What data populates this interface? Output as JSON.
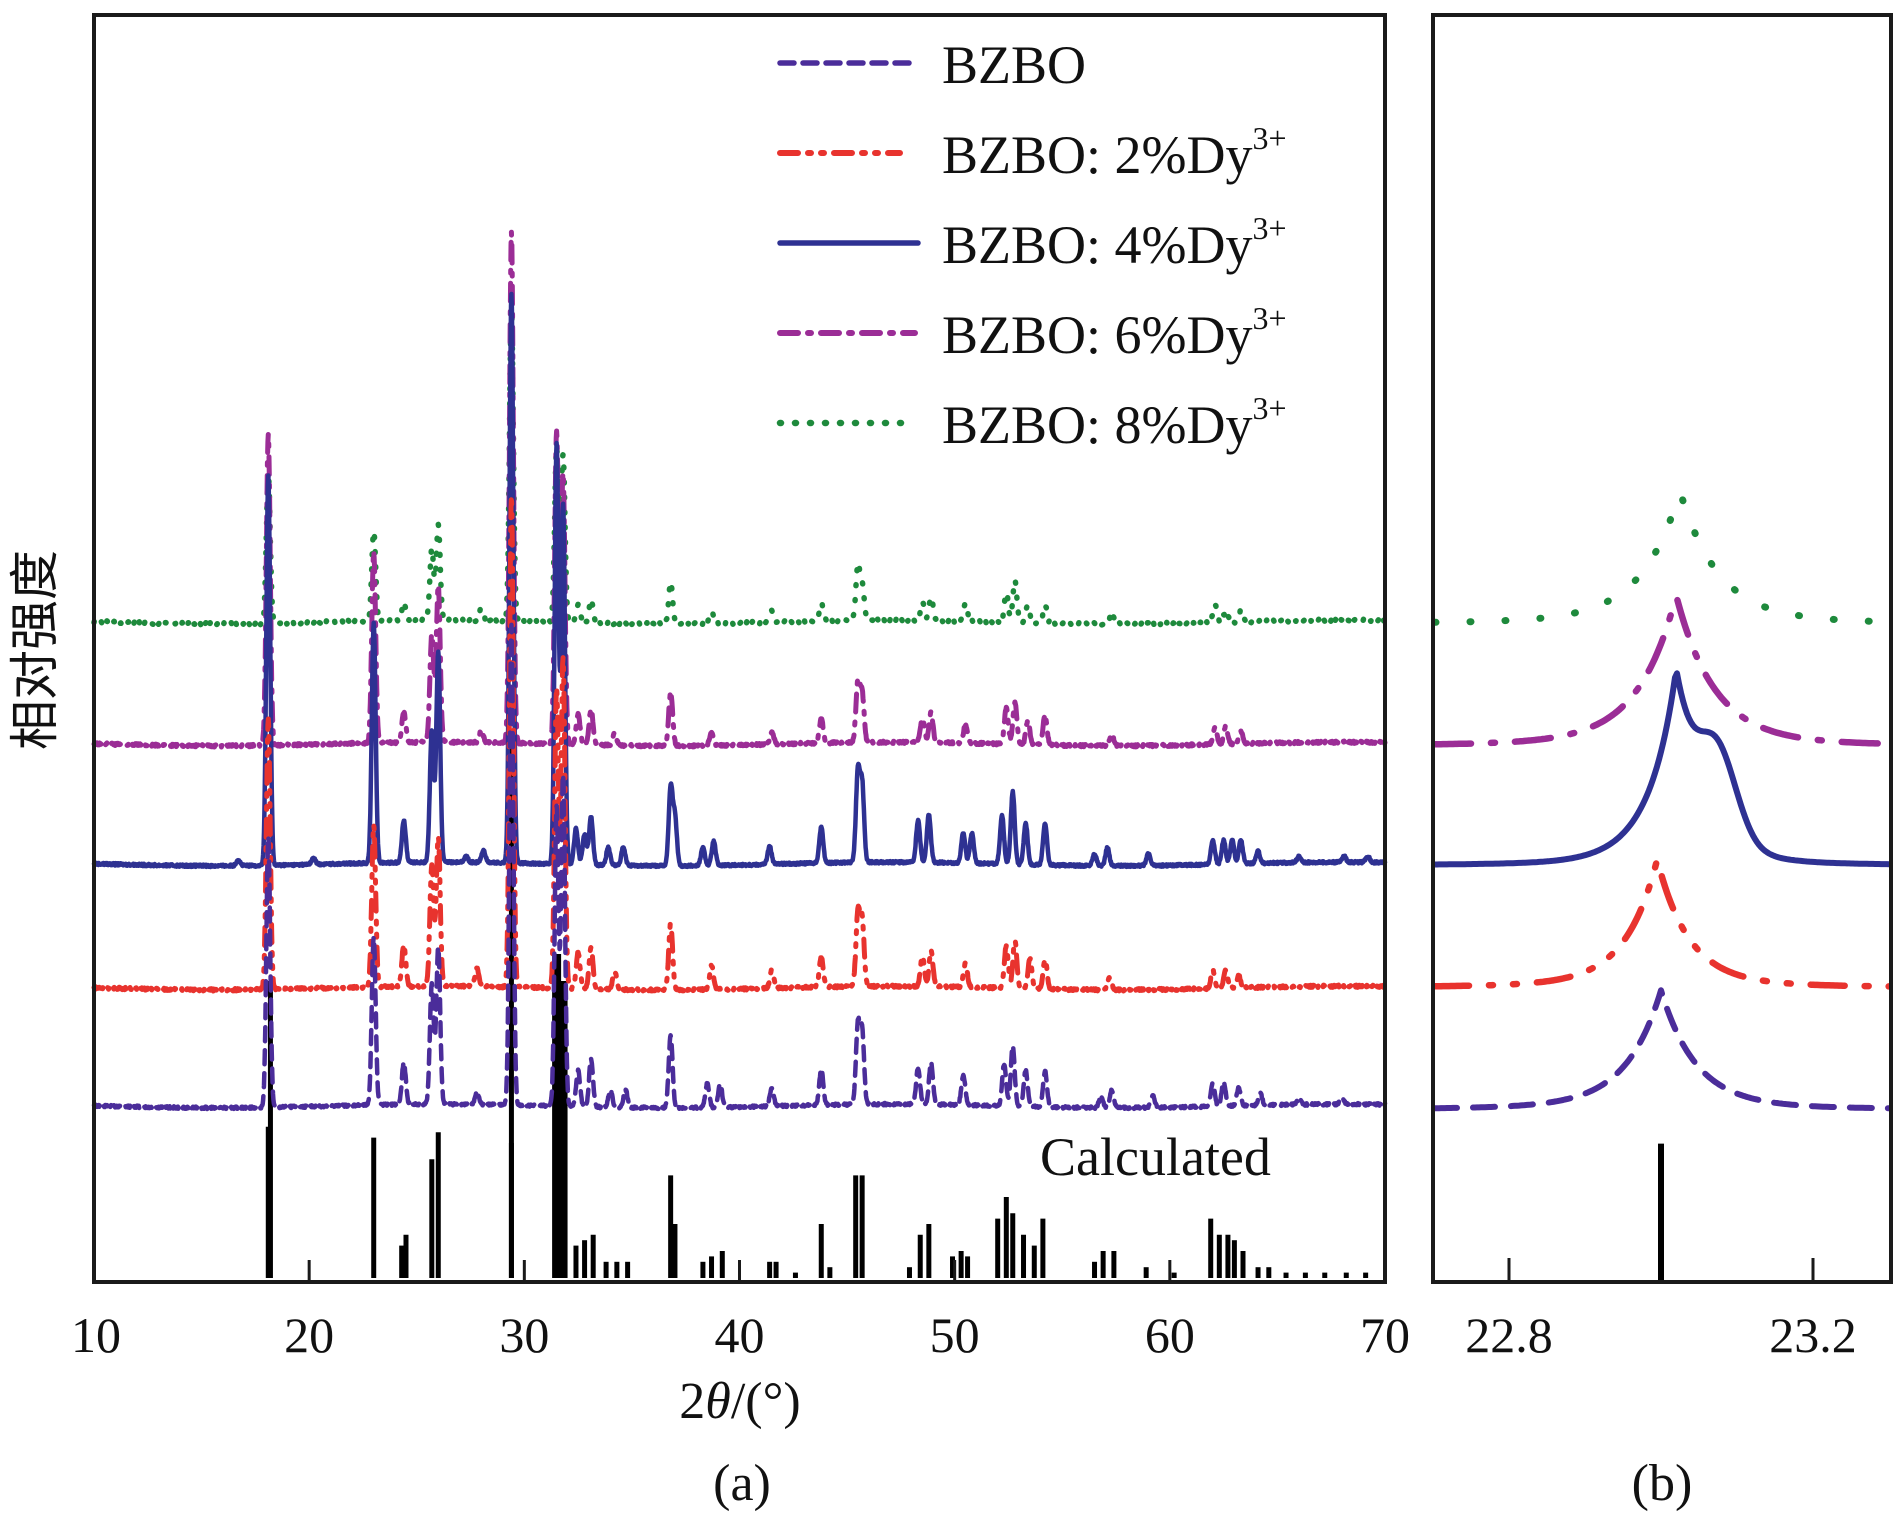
{
  "chart_data": [
    {
      "panel": "(a)",
      "type": "line",
      "title": "",
      "xlabel": "2θ/(°)",
      "ylabel": "相对强度",
      "xlim": [
        10,
        70
      ],
      "xticks": [
        "10",
        "20",
        "30",
        "40",
        "50",
        "60",
        "70"
      ],
      "ylim": [
        0,
        1
      ],
      "yticks": [],
      "grid": false,
      "legend_position": "top-right",
      "annotation": "Calculated",
      "note": "Curves are vertically offset stacks; intensities are relative (arbitrary units, strongest peak = 1.0).",
      "series": [
        {
          "name": "BZBO",
          "color": "#4b2d9a",
          "dash": "dashed",
          "offset": 0.17,
          "peaks": [
            [
              18.1,
              0.45
            ],
            [
              23.0,
              0.28
            ],
            [
              24.4,
              0.07
            ],
            [
              25.7,
              0.2
            ],
            [
              26.0,
              0.26
            ],
            [
              27.8,
              0.02
            ],
            [
              29.4,
              0.8
            ],
            [
              31.5,
              0.5
            ],
            [
              31.8,
              0.55
            ],
            [
              32.5,
              0.06
            ],
            [
              33.1,
              0.08
            ],
            [
              34.0,
              0.03
            ],
            [
              34.7,
              0.03
            ],
            [
              36.8,
              0.12
            ],
            [
              38.5,
              0.04
            ],
            [
              39.1,
              0.04
            ],
            [
              41.5,
              0.03
            ],
            [
              43.8,
              0.06
            ],
            [
              45.5,
              0.13
            ],
            [
              45.7,
              0.12
            ],
            [
              48.3,
              0.06
            ],
            [
              48.9,
              0.07
            ],
            [
              50.4,
              0.05
            ],
            [
              52.3,
              0.07
            ],
            [
              52.7,
              0.1
            ],
            [
              53.3,
              0.06
            ],
            [
              54.2,
              0.06
            ],
            [
              56.8,
              0.02
            ],
            [
              57.3,
              0.03
            ],
            [
              59.2,
              0.02
            ],
            [
              62.0,
              0.04
            ],
            [
              62.5,
              0.04
            ],
            [
              63.2,
              0.03
            ],
            [
              64.2,
              0.02
            ],
            [
              66.0,
              0.01
            ],
            [
              68.0,
              0.01
            ]
          ]
        },
        {
          "name": "BZBO: 2%Dy3+",
          "color": "#e8332e",
          "dash": "dash-dot-dot",
          "offset": 0.36,
          "peaks": [
            [
              18.1,
              0.45
            ],
            [
              23.0,
              0.27
            ],
            [
              24.4,
              0.07
            ],
            [
              25.7,
              0.2
            ],
            [
              26.0,
              0.25
            ],
            [
              27.8,
              0.03
            ],
            [
              29.4,
              0.82
            ],
            [
              31.5,
              0.5
            ],
            [
              31.8,
              0.55
            ],
            [
              32.5,
              0.06
            ],
            [
              33.1,
              0.07
            ],
            [
              34.2,
              0.03
            ],
            [
              36.8,
              0.11
            ],
            [
              38.7,
              0.04
            ],
            [
              41.5,
              0.03
            ],
            [
              43.8,
              0.05
            ],
            [
              45.5,
              0.12
            ],
            [
              45.7,
              0.11
            ],
            [
              48.5,
              0.05
            ],
            [
              48.9,
              0.06
            ],
            [
              50.5,
              0.04
            ],
            [
              52.4,
              0.07
            ],
            [
              52.8,
              0.08
            ],
            [
              53.5,
              0.05
            ],
            [
              54.2,
              0.05
            ],
            [
              57.2,
              0.02
            ],
            [
              62.0,
              0.03
            ],
            [
              62.6,
              0.03
            ],
            [
              63.2,
              0.02
            ]
          ]
        },
        {
          "name": "BZBO: 4%Dy3+",
          "color": "#2e3192",
          "dash": "solid",
          "offset": 0.55,
          "peaks": [
            [
              16.7,
              0.01
            ],
            [
              18.1,
              0.65
            ],
            [
              20.2,
              0.01
            ],
            [
              23.0,
              0.4
            ],
            [
              24.4,
              0.07
            ],
            [
              25.7,
              0.22
            ],
            [
              26.0,
              0.35
            ],
            [
              27.3,
              0.01
            ],
            [
              28.1,
              0.02
            ],
            [
              29.4,
              0.95
            ],
            [
              31.5,
              0.7
            ],
            [
              31.8,
              0.6
            ],
            [
              32.4,
              0.06
            ],
            [
              32.8,
              0.05
            ],
            [
              33.1,
              0.08
            ],
            [
              33.9,
              0.03
            ],
            [
              34.6,
              0.03
            ],
            [
              36.8,
              0.13
            ],
            [
              37.0,
              0.08
            ],
            [
              38.3,
              0.03
            ],
            [
              38.8,
              0.04
            ],
            [
              41.4,
              0.03
            ],
            [
              43.8,
              0.06
            ],
            [
              45.5,
              0.15
            ],
            [
              45.7,
              0.13
            ],
            [
              48.3,
              0.07
            ],
            [
              48.8,
              0.08
            ],
            [
              50.4,
              0.05
            ],
            [
              50.8,
              0.05
            ],
            [
              52.2,
              0.08
            ],
            [
              52.7,
              0.12
            ],
            [
              53.3,
              0.07
            ],
            [
              54.2,
              0.07
            ],
            [
              56.5,
              0.02
            ],
            [
              57.1,
              0.03
            ],
            [
              59.0,
              0.02
            ],
            [
              62.0,
              0.04
            ],
            [
              62.5,
              0.04
            ],
            [
              62.9,
              0.04
            ],
            [
              63.3,
              0.04
            ],
            [
              64.1,
              0.02
            ],
            [
              66.0,
              0.01
            ],
            [
              68.1,
              0.01
            ],
            [
              69.2,
              0.01
            ]
          ]
        },
        {
          "name": "BZBO: 6%Dy3+",
          "color": "#9b2d96",
          "dash": "dash-dot",
          "offset": 0.74,
          "peaks": [
            [
              18.1,
              0.52
            ],
            [
              23.0,
              0.32
            ],
            [
              24.4,
              0.05
            ],
            [
              25.7,
              0.18
            ],
            [
              26.0,
              0.26
            ],
            [
              28.0,
              0.02
            ],
            [
              29.4,
              0.85
            ],
            [
              31.5,
              0.52
            ],
            [
              31.8,
              0.45
            ],
            [
              32.5,
              0.05
            ],
            [
              33.1,
              0.06
            ],
            [
              34.2,
              0.02
            ],
            [
              36.8,
              0.09
            ],
            [
              38.7,
              0.02
            ],
            [
              41.5,
              0.02
            ],
            [
              43.8,
              0.04
            ],
            [
              45.5,
              0.1
            ],
            [
              45.7,
              0.08
            ],
            [
              48.5,
              0.04
            ],
            [
              48.9,
              0.05
            ],
            [
              50.5,
              0.03
            ],
            [
              52.4,
              0.06
            ],
            [
              52.8,
              0.07
            ],
            [
              53.4,
              0.04
            ],
            [
              54.2,
              0.05
            ],
            [
              57.3,
              0.02
            ],
            [
              62.1,
              0.03
            ],
            [
              62.6,
              0.03
            ],
            [
              63.3,
              0.02
            ]
          ]
        },
        {
          "name": "BZBO: 8%Dy3+",
          "color": "#1e8a3c",
          "dash": "dotted",
          "offset": 0.93,
          "peaks": [
            [
              18.1,
              0.25
            ],
            [
              23.0,
              0.15
            ],
            [
              24.4,
              0.03
            ],
            [
              25.7,
              0.12
            ],
            [
              26.0,
              0.16
            ],
            [
              28.0,
              0.02
            ],
            [
              29.4,
              0.52
            ],
            [
              31.5,
              0.29
            ],
            [
              31.8,
              0.28
            ],
            [
              32.5,
              0.03
            ],
            [
              33.1,
              0.04
            ],
            [
              36.8,
              0.07
            ],
            [
              38.7,
              0.02
            ],
            [
              41.5,
              0.02
            ],
            [
              43.8,
              0.03
            ],
            [
              45.5,
              0.09
            ],
            [
              45.7,
              0.06
            ],
            [
              48.5,
              0.03
            ],
            [
              48.9,
              0.04
            ],
            [
              50.5,
              0.03
            ],
            [
              52.4,
              0.05
            ],
            [
              52.8,
              0.07
            ],
            [
              53.4,
              0.03
            ],
            [
              54.2,
              0.03
            ],
            [
              57.3,
              0.02
            ],
            [
              62.1,
              0.03
            ],
            [
              62.6,
              0.02
            ],
            [
              63.3,
              0.02
            ]
          ]
        }
      ],
      "calculated_sticks": [
        [
          18.1,
          0.28
        ],
        [
          18.2,
          0.55
        ],
        [
          23.0,
          0.26
        ],
        [
          24.3,
          0.06
        ],
        [
          24.5,
          0.08
        ],
        [
          25.7,
          0.22
        ],
        [
          26.0,
          0.27
        ],
        [
          29.4,
          1.0
        ],
        [
          29.4,
          0.25
        ],
        [
          31.5,
          0.6
        ],
        [
          31.8,
          0.55
        ],
        [
          32.4,
          0.06
        ],
        [
          32.8,
          0.07
        ],
        [
          33.2,
          0.08
        ],
        [
          33.8,
          0.03
        ],
        [
          34.3,
          0.03
        ],
        [
          34.8,
          0.03
        ],
        [
          36.8,
          0.19
        ],
        [
          37.0,
          0.1
        ],
        [
          38.3,
          0.03
        ],
        [
          38.7,
          0.04
        ],
        [
          39.2,
          0.05
        ],
        [
          41.4,
          0.03
        ],
        [
          41.7,
          0.03
        ],
        [
          42.6,
          0.01
        ],
        [
          43.8,
          0.1
        ],
        [
          44.2,
          0.02
        ],
        [
          45.4,
          0.19
        ],
        [
          45.7,
          0.19
        ],
        [
          47.9,
          0.02
        ],
        [
          48.4,
          0.08
        ],
        [
          48.8,
          0.1
        ],
        [
          49.9,
          0.04
        ],
        [
          50.3,
          0.05
        ],
        [
          50.6,
          0.04
        ],
        [
          52.0,
          0.11
        ],
        [
          52.4,
          0.15
        ],
        [
          52.7,
          0.12
        ],
        [
          53.2,
          0.08
        ],
        [
          53.7,
          0.06
        ],
        [
          54.1,
          0.11
        ],
        [
          56.5,
          0.03
        ],
        [
          56.9,
          0.05
        ],
        [
          57.4,
          0.05
        ],
        [
          58.9,
          0.02
        ],
        [
          60.2,
          0.01
        ],
        [
          61.9,
          0.11
        ],
        [
          62.3,
          0.08
        ],
        [
          62.7,
          0.08
        ],
        [
          63.0,
          0.07
        ],
        [
          63.4,
          0.05
        ],
        [
          64.1,
          0.02
        ],
        [
          64.6,
          0.02
        ],
        [
          65.4,
          0.01
        ],
        [
          66.3,
          0.01
        ],
        [
          67.2,
          0.01
        ],
        [
          68.2,
          0.01
        ],
        [
          69.1,
          0.01
        ]
      ]
    },
    {
      "panel": "(b)",
      "type": "line",
      "title": "",
      "xlabel": "",
      "ylabel": "",
      "xlim": [
        22.7,
        23.3
      ],
      "xticks": [
        "22.8",
        "23.2"
      ],
      "ylim": [
        0,
        1
      ],
      "grid": false,
      "note": "Zoom of the ~23.0° reflection for each sample, stacked in same order/colors as panel (a).",
      "series": [
        {
          "name": "BZBO",
          "color": "#4b2d9a",
          "dash": "dashed",
          "center": 23.0,
          "height": 0.26,
          "width": 0.055,
          "offset": 0.37
        },
        {
          "name": "BZBO: 2%Dy3+",
          "color": "#e8332e",
          "dash": "dash-dot-dot",
          "center": 22.995,
          "height": 0.28,
          "width": 0.05,
          "offset": 0.64
        },
        {
          "name": "BZBO: 4%Dy3+",
          "color": "#2e3192",
          "dash": "solid",
          "center": 23.02,
          "height": 0.42,
          "width": 0.045,
          "offset": 0.91,
          "shoulder": [
            23.075,
            0.18
          ]
        },
        {
          "name": "BZBO: 6%Dy3+",
          "color": "#9b2d96",
          "dash": "dash-dot",
          "center": 23.02,
          "height": 0.33,
          "width": 0.06,
          "offset": 1.18
        },
        {
          "name": "BZBO: 8%Dy3+",
          "color": "#1e8a3c",
          "dash": "dotted",
          "center": 23.025,
          "height": 0.29,
          "width": 0.06,
          "offset": 1.45
        }
      ],
      "calculated_sticks": [
        [
          23.0,
          0.31
        ]
      ]
    }
  ],
  "legend": {
    "items": [
      {
        "label": "BZBO",
        "sup": ""
      },
      {
        "label": "BZBO: 2%Dy",
        "sup": "3+"
      },
      {
        "label": "BZBO: 4%Dy",
        "sup": "3+"
      },
      {
        "label": "BZBO: 6%Dy",
        "sup": "3+"
      },
      {
        "label": "BZBO: 8%Dy",
        "sup": "3+"
      }
    ]
  },
  "labels": {
    "panel_a": "(a)",
    "panel_b": "(b)",
    "xlabel_a_prefix": "2",
    "xlabel_a_theta": "θ",
    "xlabel_a_suffix": "/(°)",
    "ylabel": "相对强度",
    "calculated": "Calculated"
  }
}
